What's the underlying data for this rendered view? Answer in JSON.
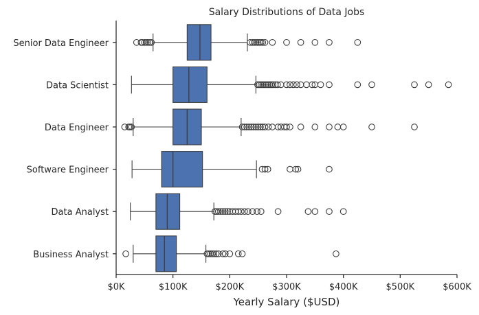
{
  "chart_data": {
    "type": "box",
    "title": "Salary Distributions of Data Jobs",
    "xlabel": "Yearly Salary ($USD)",
    "ylabel": "",
    "xlim": [
      0,
      600000
    ],
    "x_ticks": [
      0,
      100000,
      200000,
      300000,
      400000,
      500000,
      600000
    ],
    "x_tick_labels": [
      "$0K",
      "$100K",
      "$200K",
      "$300K",
      "$400K",
      "$500K",
      "$600K"
    ],
    "grid": false,
    "box_color": "#4c72b0",
    "line_color": "#3d3d3d",
    "categories": [
      "Senior Data Engineer",
      "Data Scientist",
      "Data Engineer",
      "Software Engineer",
      "Data Analyst",
      "Business Analyst"
    ],
    "boxes": [
      {
        "category": "Senior Data Engineer",
        "whisker_low": 65000,
        "q1": 125000,
        "median": 147500,
        "q3": 167000,
        "whisker_high": 231000,
        "outliers": [
          36000,
          44000,
          46000,
          50000,
          53000,
          56000,
          59000,
          62000,
          236000,
          240000,
          243000,
          246000,
          249000,
          252000,
          255000,
          258000,
          262000,
          275000,
          300000,
          325000,
          350000,
          375000,
          425000
        ]
      },
      {
        "category": "Data Scientist",
        "whisker_low": 27000,
        "q1": 100000,
        "median": 128000,
        "q3": 160000,
        "whisker_high": 246000,
        "outliers": [
          249000,
          252000,
          255000,
          258000,
          261000,
          264000,
          267000,
          270000,
          273000,
          276000,
          280000,
          284000,
          290000,
          300000,
          306000,
          312000,
          318000,
          325000,
          335000,
          345000,
          350000,
          360000,
          375000,
          425000,
          450000,
          525000,
          550000,
          585000
        ]
      },
      {
        "category": "Data Engineer",
        "whisker_low": 30000,
        "q1": 100000,
        "median": 125000,
        "q3": 150000,
        "whisker_high": 220000,
        "outliers": [
          15000,
          22000,
          24000,
          27000,
          222000,
          226000,
          230000,
          234000,
          238000,
          242000,
          246000,
          250000,
          254000,
          258000,
          262000,
          268000,
          275000,
          285000,
          290000,
          296000,
          300000,
          306000,
          325000,
          350000,
          375000,
          390000,
          400000,
          450000,
          525000
        ]
      },
      {
        "category": "Software Engineer",
        "whisker_low": 28000,
        "q1": 80000,
        "median": 100000,
        "q3": 152000,
        "whisker_high": 247000,
        "outliers": [
          257000,
          262000,
          267000,
          306000,
          316000,
          320000,
          375000
        ]
      },
      {
        "category": "Data Analyst",
        "whisker_low": 25000,
        "q1": 70000,
        "median": 90000,
        "q3": 112000,
        "whisker_high": 172000,
        "outliers": [
          174000,
          177000,
          180000,
          184000,
          188000,
          192000,
          196000,
          200000,
          205000,
          210000,
          215000,
          220000,
          226000,
          232000,
          240000,
          248000,
          255000,
          285000,
          338000,
          350000,
          375000,
          400000
        ]
      },
      {
        "category": "Business Analyst",
        "whisker_low": 30000,
        "q1": 70000,
        "median": 85000,
        "q3": 106000,
        "whisker_high": 158000,
        "outliers": [
          17000,
          160000,
          163000,
          166000,
          169000,
          172000,
          176000,
          180000,
          188000,
          192000,
          200000,
          215000,
          222000,
          387000
        ]
      }
    ]
  }
}
